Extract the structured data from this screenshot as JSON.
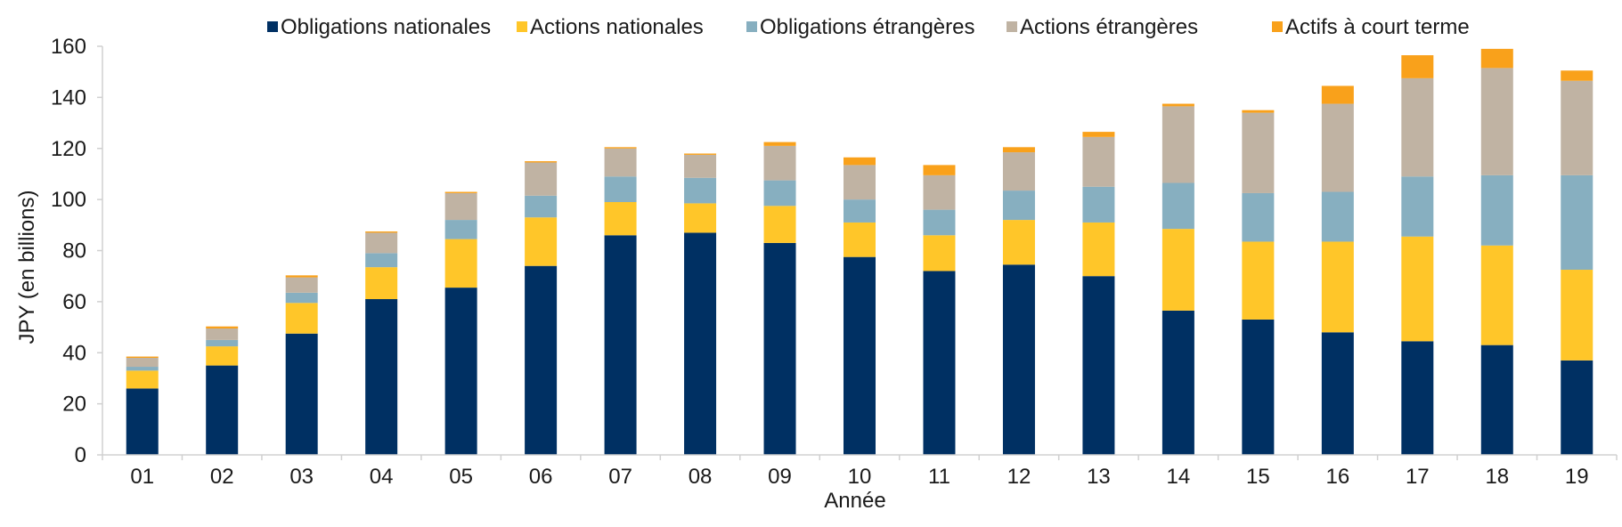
{
  "chart_data": {
    "type": "bar",
    "stacked": true,
    "title": "",
    "xlabel": "Année",
    "ylabel": "JPY (en billions)",
    "ylim": [
      0,
      160
    ],
    "yticks": [
      0,
      20,
      40,
      60,
      80,
      100,
      120,
      140,
      160
    ],
    "grid": false,
    "legend_position": "top",
    "categories": [
      "01",
      "02",
      "03",
      "04",
      "05",
      "06",
      "07",
      "08",
      "09",
      "10",
      "11",
      "12",
      "13",
      "14",
      "15",
      "16",
      "17",
      "18",
      "19"
    ],
    "series": [
      {
        "name": "Obligations nationales",
        "color": "#003063",
        "values": [
          26,
          35,
          47.5,
          61,
          65.5,
          74,
          86,
          87,
          83,
          77.5,
          72,
          74.5,
          70,
          56.5,
          53,
          48,
          44.5,
          43,
          37
        ]
      },
      {
        "name": "Actions nationales",
        "color": "#FFC629",
        "values": [
          7,
          7.5,
          12,
          12.5,
          19,
          19,
          13,
          11.5,
          14.5,
          13.5,
          14,
          17.5,
          21,
          32,
          30.5,
          35.5,
          41,
          39,
          35.5
        ]
      },
      {
        "name": "Obligations étrangères",
        "color": "#87AFC0",
        "values": [
          1.5,
          2.5,
          4,
          5.5,
          7.5,
          8.5,
          10,
          10,
          10,
          9,
          10,
          11.5,
          14,
          18,
          19,
          19.5,
          23.5,
          27.5,
          37
        ]
      },
      {
        "name": "Actions étrangères",
        "color": "#C0B3A3",
        "values": [
          3.5,
          4.5,
          6,
          8,
          10.5,
          13,
          11,
          9,
          13.5,
          13.5,
          13.5,
          15,
          19.5,
          30,
          31.5,
          34.5,
          38.5,
          42,
          37
        ]
      },
      {
        "name": "Actifs à court terme",
        "color": "#F9A11B",
        "values": [
          0.5,
          0.8,
          0.8,
          0.5,
          0.5,
          0.5,
          0.5,
          0.5,
          1.5,
          3,
          4,
          2,
          2,
          1,
          1,
          7,
          9,
          7.5,
          4
        ]
      }
    ]
  }
}
